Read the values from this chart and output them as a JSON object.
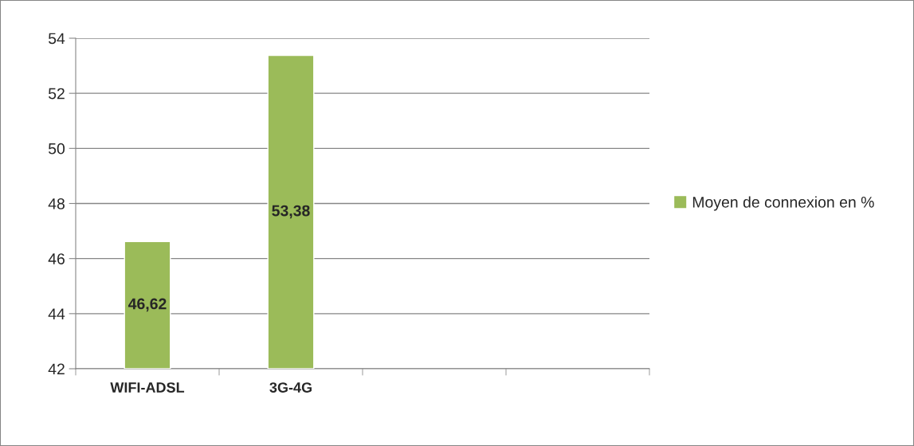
{
  "chart_data": {
    "type": "bar",
    "categories": [
      "WIFI-ADSL",
      "3G-4G",
      null,
      null
    ],
    "series": [
      {
        "name": "Moyen de connexion en %",
        "color": "#9bbb59",
        "values": [
          46.62,
          53.38,
          null,
          null
        ],
        "value_labels": [
          "46,62",
          "53,38",
          null,
          null
        ]
      }
    ],
    "ylim": [
      42,
      54
    ],
    "yticks": [
      42,
      44,
      46,
      48,
      50,
      52,
      54
    ],
    "grid": "y",
    "legend": "right"
  }
}
